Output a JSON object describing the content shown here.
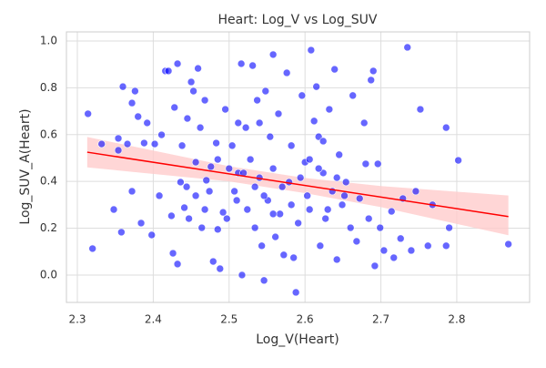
{
  "chart_data": {
    "type": "scatter",
    "title": "Heart: Log_V vs Log_SUV",
    "x_label": "Log_V(Heart)",
    "y_label": "Log_SUV_A(Heart)",
    "xlim": [
      2.2856,
      2.896
    ],
    "ylim": [
      -0.117,
      1.039
    ],
    "xticks": [
      2.3,
      2.4,
      2.5,
      2.6,
      2.7,
      2.8
    ],
    "yticks": [
      {
        "value": 0,
        "label": "0.0"
      },
      0.2,
      0.4,
      0.6,
      0.8,
      {
        "value": 1,
        "label": "1.0"
      }
    ],
    "grid": true,
    "series": [
      {
        "color": "#0000ff",
        "x": [
          2.314,
          2.32,
          2.332,
          2.348,
          2.354,
          2.354,
          2.358,
          2.36,
          2.366,
          2.372,
          2.376,
          2.38,
          2.372,
          2.384,
          2.388,
          2.392,
          2.398,
          2.402,
          2.408,
          2.411,
          2.416,
          2.42,
          2.424,
          2.426,
          2.428,
          2.432,
          2.432,
          2.436,
          2.438,
          2.441,
          2.445,
          2.447,
          2.45,
          2.453,
          2.456,
          2.459,
          2.462,
          2.464,
          2.468,
          2.47,
          2.476,
          2.479,
          2.483,
          2.485,
          2.488,
          2.492,
          2.495,
          2.5,
          2.504,
          2.507,
          2.512,
          2.516,
          2.517,
          2.522,
          2.524,
          2.528,
          2.531,
          2.534,
          2.537,
          2.54,
          2.543,
          2.546,
          2.548,
          2.551,
          2.554,
          2.558,
          2.558,
          2.561,
          2.565,
          2.567,
          2.572,
          2.576,
          2.579,
          2.582,
          2.585,
          2.588,
          2.591,
          2.596,
          2.6,
          2.603,
          2.608,
          2.612,
          2.615,
          2.618,
          2.62,
          2.624,
          2.627,
          2.632,
          2.636,
          2.639,
          2.642,
          2.645,
          2.649,
          2.654,
          2.66,
          2.663,
          2.668,
          2.672,
          2.678,
          2.68,
          2.684,
          2.687,
          2.69,
          2.692,
          2.696,
          2.699,
          2.704,
          2.714,
          2.717,
          2.726,
          2.729,
          2.735,
          2.74,
          2.746,
          2.752,
          2.762,
          2.768,
          2.786,
          2.786,
          2.79,
          2.802,
          2.868,
          2.485,
          2.497,
          2.51,
          2.519,
          2.534,
          2.546,
          2.558,
          2.57,
          2.582,
          2.594,
          2.606,
          2.618,
          2.63,
          2.642,
          2.652,
          2.474,
          2.456,
          2.444,
          2.468,
          2.512,
          2.54,
          2.606,
          2.624
        ],
        "values": [
          0.689,
          0.113,
          0.56,
          0.28,
          0.584,
          0.533,
          0.183,
          0.805,
          0.56,
          0.735,
          0.786,
          0.677,
          0.358,
          0.222,
          0.564,
          0.65,
          0.171,
          0.56,
          0.339,
          0.599,
          0.872,
          0.872,
          0.253,
          0.093,
          0.716,
          0.047,
          0.903,
          0.397,
          0.553,
          0.288,
          0.669,
          0.241,
          0.825,
          0.786,
          0.482,
          0.883,
          0.63,
          0.202,
          0.747,
          0.405,
          0.463,
          0.058,
          0.564,
          0.195,
          0.027,
          0.268,
          0.708,
          0.455,
          0.553,
          0.358,
          0.436,
          0.903,
          0,
          0.63,
          0.28,
          0.494,
          0.895,
          0.202,
          0.747,
          0.416,
          0.125,
          -0.023,
          0.786,
          0.319,
          0.591,
          0.455,
          0.942,
          0.163,
          0.689,
          0.261,
          0.086,
          0.864,
          0.397,
          0.553,
          0.074,
          -0.074,
          0.222,
          0.767,
          0.482,
          0.339,
          0.961,
          0.658,
          0.805,
          0.591,
          0.125,
          0.436,
          0.241,
          0.708,
          0.358,
          0.879,
          0.066,
          0.514,
          0.3,
          0.397,
          0.202,
          0.767,
          0.144,
          0.327,
          0.65,
          0.475,
          0.241,
          0.833,
          0.872,
          0.039,
          0.475,
          0.202,
          0.105,
          0.272,
          0.074,
          0.156,
          0.327,
          0.973,
          0.105,
          0.358,
          0.708,
          0.125,
          0.3,
          0.63,
          0.125,
          0.202,
          0.49,
          0.132,
          0.494,
          0.241,
          0.319,
          0.436,
          0.377,
          0.339,
          0.261,
          0.377,
          0.3,
          0.416,
          0.28,
          0.455,
          0.28,
          0.416,
          0.339,
          0.358,
          0.339,
          0.377,
          0.28,
          0.65,
          0.65,
          0.494,
          0.572
        ]
      }
    ],
    "regression": {
      "color": "#ff0000",
      "x": [
        2.313,
        2.868
      ],
      "y": [
        0.525,
        0.25
      ]
    },
    "band": {
      "color": "#ffcccc",
      "x": [
        2.313,
        2.5,
        2.6,
        2.7,
        2.868
      ],
      "lower": [
        0.46,
        0.4,
        0.35,
        0.29,
        0.17
      ],
      "upper": [
        0.59,
        0.465,
        0.415,
        0.38,
        0.34
      ]
    }
  }
}
